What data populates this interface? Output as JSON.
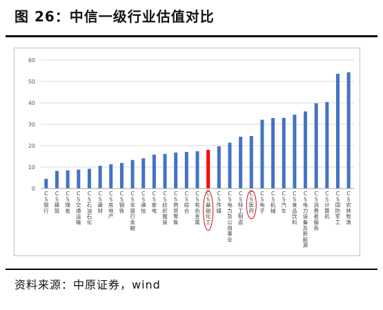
{
  "header": {
    "title": "图 26：中信一级行业估值对比"
  },
  "footer": {
    "source": "资料来源：中原证券，wind"
  },
  "colors": {
    "bar": "#4472c4",
    "highlight_bar": "#ff0000",
    "circle": "#e00000",
    "grid": "#d9d9d9",
    "axis": "#a6a6a6",
    "tick_text": "#595959",
    "label_text": "#404040"
  },
  "chart_data": {
    "type": "bar",
    "title": "",
    "xlabel": "",
    "ylabel": "",
    "ylim": [
      0,
      60
    ],
    "yticks": [
      0,
      10,
      20,
      30,
      40,
      50,
      60
    ],
    "grid": true,
    "legend": "none",
    "categories": [
      "CS银行",
      "CS建筑",
      "CS煤炭",
      "CS交通运输",
      "CS石油石化",
      "CS建材",
      "CS房地产",
      "CS钢铁",
      "CS非银行金融",
      "CS通信",
      "CS家电",
      "CS纺织服装",
      "CS商贸零售",
      "CS综合",
      "CS有色金属",
      "CS基础化工",
      "CS传媒",
      "CS电力及公用事业",
      "CS轻工制造",
      "CS医药",
      "CS电子",
      "CS机械",
      "CS汽车",
      "CS食品饮料",
      "CS电力设备及新能源",
      "CS消费者服务",
      "CS计算机",
      "CS国防军工",
      "CS农林牧渔"
    ],
    "values": [
      4.5,
      8.2,
      8.5,
      8.8,
      9.2,
      10.6,
      11.3,
      11.9,
      13.3,
      14.1,
      15.8,
      16.1,
      16.8,
      17.1,
      17.4,
      18.0,
      19.7,
      21.4,
      24.2,
      24.5,
      32.1,
      32.9,
      33.0,
      34.5,
      36.0,
      39.8,
      40.4,
      53.6,
      54.3
    ],
    "highlight_index": 15,
    "circled_indices": [
      15,
      19
    ]
  }
}
